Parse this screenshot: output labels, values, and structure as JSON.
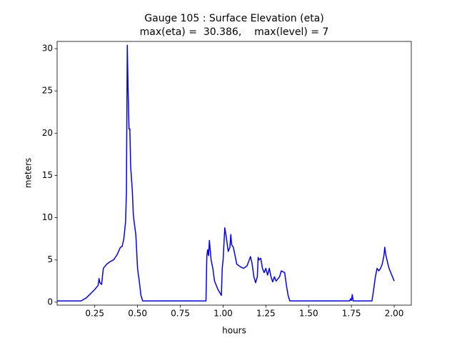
{
  "chart_data": {
    "type": "line",
    "title": "Gauge 105 : Surface Elevation (eta)",
    "subtitle": "max(eta) =  30.386,    max(level) = 7",
    "x_label": "hours",
    "y_label": "meters",
    "xlim": [
      0.03,
      2.1
    ],
    "ylim": [
      -0.35,
      30.85
    ],
    "xticks": [
      0.25,
      {
        "value": 0.5,
        "label": "0.50"
      },
      0.75,
      {
        "value": 1.0,
        "label": "1.00"
      },
      1.25,
      {
        "value": 1.5,
        "label": "1.50"
      },
      1.75,
      {
        "value": 2.0,
        "label": "2.00"
      }
    ],
    "yticks": [
      0,
      5,
      10,
      15,
      20,
      25,
      30
    ],
    "grid": false,
    "x": [
      0.03,
      0.17,
      0.2,
      0.25,
      0.27,
      0.275,
      0.28,
      0.29,
      0.3,
      0.32,
      0.34,
      0.36,
      0.38,
      0.4,
      0.41,
      0.42,
      0.43,
      0.435,
      0.44,
      0.445,
      0.45,
      0.455,
      0.46,
      0.47,
      0.475,
      0.48,
      0.49,
      0.5,
      0.51,
      0.52,
      0.53,
      0.9,
      0.905,
      0.91,
      0.915,
      0.92,
      0.93,
      0.94,
      0.95,
      0.97,
      0.99,
      0.995,
      1.0,
      1.01,
      1.02,
      1.03,
      1.04,
      1.045,
      1.05,
      1.06,
      1.07,
      1.08,
      1.1,
      1.12,
      1.14,
      1.16,
      1.17,
      1.18,
      1.19,
      1.2,
      1.205,
      1.21,
      1.22,
      1.23,
      1.24,
      1.25,
      1.26,
      1.27,
      1.28,
      1.29,
      1.3,
      1.31,
      1.33,
      1.34,
      1.36,
      1.37,
      1.38,
      1.39,
      1.74,
      1.745,
      1.75,
      1.755,
      1.76,
      1.87,
      1.88,
      1.89,
      1.9,
      1.91,
      1.92,
      1.93,
      1.94,
      1.945,
      1.95,
      1.96,
      1.97,
      1.98,
      2.0
    ],
    "series": [
      {
        "name": "eta",
        "color": "#0000ff",
        "values": [
          0.15,
          0.15,
          0.5,
          1.5,
          2.0,
          2.8,
          2.3,
          2.1,
          4.0,
          4.5,
          4.8,
          5.0,
          5.6,
          6.5,
          6.6,
          7.5,
          9.5,
          13,
          30.4,
          25,
          20.5,
          20.5,
          16,
          13,
          10.5,
          9.5,
          8,
          4,
          2.5,
          0.8,
          0.15,
          0.15,
          5.5,
          6.2,
          5.5,
          7.3,
          5,
          4,
          2.5,
          1.5,
          0.8,
          4,
          5,
          8.8,
          7.5,
          6,
          6.5,
          8,
          6.8,
          6.5,
          5.5,
          4.5,
          4.2,
          4.0,
          4.3,
          5.4,
          4.5,
          3.0,
          2.3,
          3.0,
          5.3,
          5,
          5.2,
          4,
          3.5,
          4.0,
          3.2,
          4.0,
          3.0,
          2.4,
          3.0,
          2.5,
          3.0,
          3.7,
          3.5,
          2.0,
          0.8,
          0.15,
          0.15,
          0.4,
          0.2,
          0.9,
          0.15,
          0.15,
          1.5,
          3.0,
          4.0,
          3.7,
          4.0,
          4.5,
          5.5,
          6.5,
          5.7,
          4.8,
          4.0,
          3.5,
          2.5
        ]
      }
    ]
  }
}
